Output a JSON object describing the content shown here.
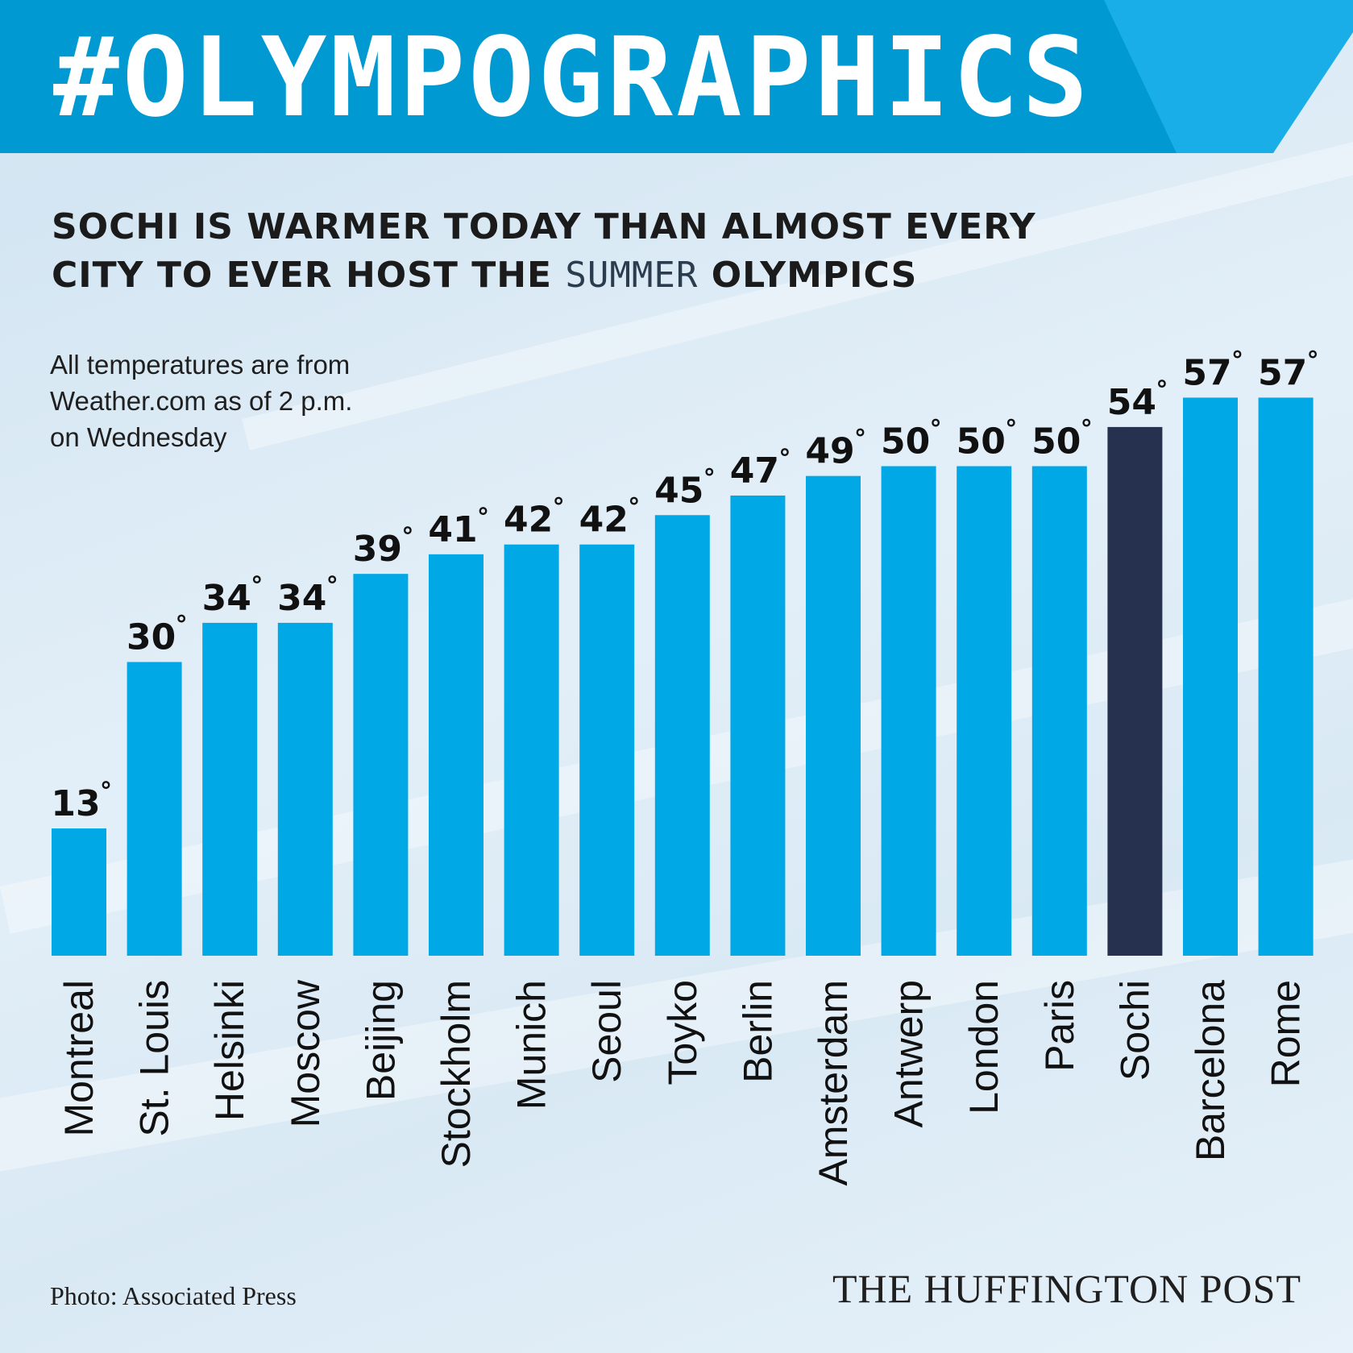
{
  "banner": {
    "title": "#OLYMPOGRAPHICS"
  },
  "headline": {
    "line1": "SOCHI IS WARMER TODAY THAN ALMOST EVERY",
    "line2_before": "CITY TO EVER HOST THE ",
    "line2_accent": "SUMMER",
    "line2_after": " OLYMPICS"
  },
  "note": {
    "line1": "All temperatures are from",
    "line2": "Weather.com as of 2 p.m.",
    "line3": "on Wednesday"
  },
  "footer": {
    "credit": "Photo: Associated Press",
    "brand": "THE HUFFINGTON POST"
  },
  "colors": {
    "banner": "#0099d2",
    "bar": "#00a8e6",
    "highlight_bar": "#25314f",
    "text": "#111111"
  },
  "chart_data": {
    "type": "bar",
    "title": "SOCHI IS WARMER TODAY THAN ALMOST EVERY CITY TO EVER HOST THE SUMMER OLYMPICS",
    "categories": [
      "Montreal",
      "St. Louis",
      "Helsinki",
      "Moscow",
      "Beijing",
      "Stockholm",
      "Munich",
      "Seoul",
      "Toyko",
      "Berlin",
      "Amsterdam",
      "Antwerp",
      "London",
      "Paris",
      "Sochi",
      "Barcelona",
      "Rome"
    ],
    "values": [
      13,
      30,
      34,
      34,
      39,
      41,
      42,
      42,
      45,
      47,
      49,
      50,
      50,
      50,
      54,
      57,
      57
    ],
    "value_unit": "°",
    "highlight": "Sochi",
    "ylim": [
      0,
      57
    ],
    "grid": false,
    "legend": "none"
  }
}
